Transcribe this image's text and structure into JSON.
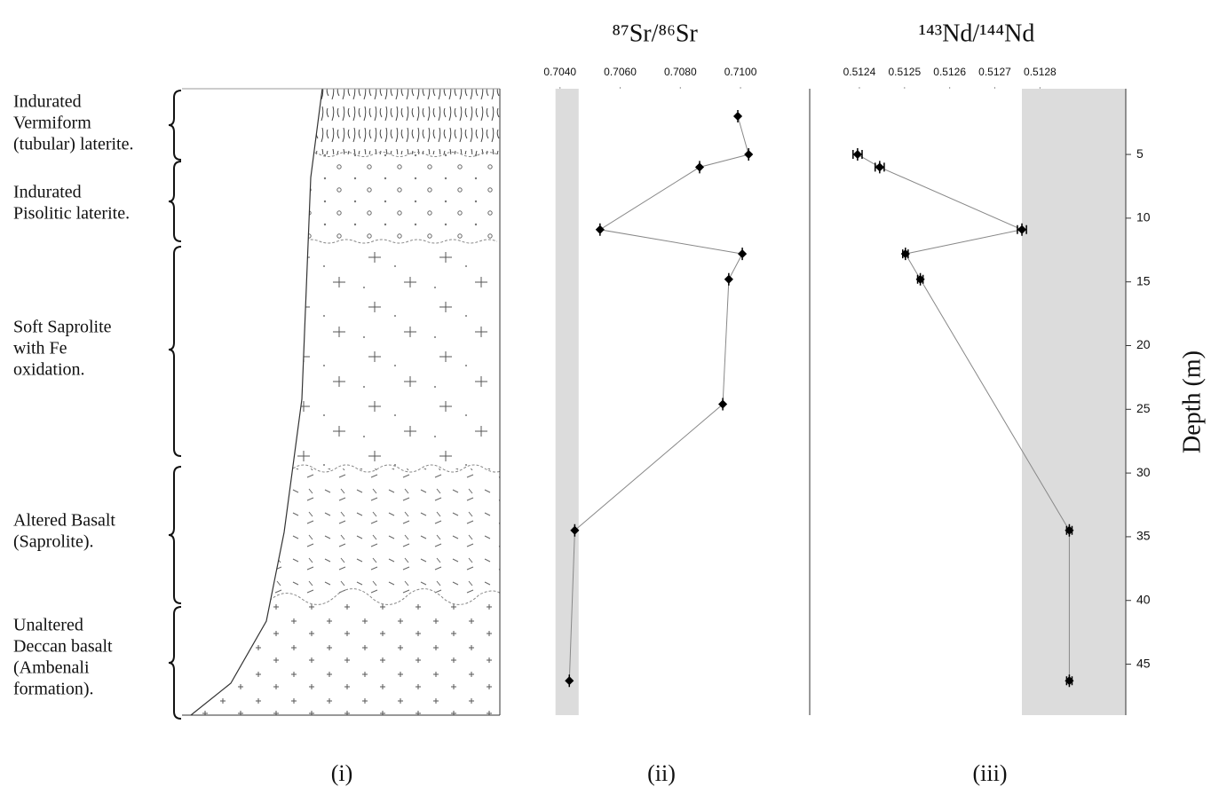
{
  "lithology": {
    "units": [
      {
        "lines": [
          "Indurated",
          "Vermiform",
          "(tubular) laterite."
        ]
      },
      {
        "lines": [
          "Indurated",
          "Pisolitic laterite."
        ]
      },
      {
        "lines": [
          "Soft Saprolite",
          "with Fe",
          "oxidation."
        ]
      },
      {
        "lines": [
          "Altered Basalt",
          "(Saprolite)."
        ]
      },
      {
        "lines": [
          "Unaltered",
          "Deccan basalt",
          "(Ambenali",
          "formation)."
        ]
      }
    ]
  },
  "panel_labels": [
    "(i)",
    "(ii)",
    "(iii)"
  ],
  "chart_data": [
    {
      "type": "line",
      "title": "⁸⁷Sr/⁸⁶Sr",
      "x": [
        0.70991,
        0.71027,
        0.70864,
        0.70533,
        0.71006,
        0.70961,
        0.70941,
        0.70449,
        0.70431
      ],
      "y": [
        2.0,
        5.0,
        6.0,
        10.9,
        12.8,
        14.8,
        24.6,
        34.5,
        46.3
      ],
      "color": "#000000",
      "line_color": "#888888",
      "reference_band": [
        0.70385,
        0.70462
      ],
      "band_color": "#dcdcdc",
      "xlim": [
        0.702,
        0.7123
      ],
      "xticks": [
        {
          "value": 0.704,
          "label": "0.7040"
        },
        {
          "value": 0.706,
          "label": "0.7060"
        },
        {
          "value": 0.708,
          "label": "0.7080"
        },
        {
          "value": 0.71,
          "label": "0.7100"
        }
      ],
      "ylim": [
        0,
        49
      ]
    },
    {
      "type": "line",
      "title": "¹⁴³Nd/¹⁴⁴Nd",
      "x": [
        0.512396,
        0.512445,
        0.51276,
        0.512502,
        0.512535,
        0.512865,
        0.512865
      ],
      "x_errors": [
        1e-05,
        1e-05,
        1e-05,
        6e-06,
        6e-06,
        6e-06,
        6e-06
      ],
      "y": [
        5.0,
        6.0,
        10.9,
        12.8,
        14.8,
        34.5,
        46.3
      ],
      "color": "#000000",
      "line_color": "#888888",
      "reference_band": [
        0.51276,
        0.51299
      ],
      "band_color": "#dcdcdc",
      "xlim": [
        0.51229,
        0.51299
      ],
      "xticks": [
        0.5124,
        0.5125,
        0.5126,
        0.5127,
        0.5128
      ],
      "ylim": [
        0,
        49
      ],
      "yticks": [
        5,
        10,
        15,
        20,
        25,
        30,
        35,
        40,
        45
      ],
      "y_label": "Depth (m)"
    }
  ]
}
